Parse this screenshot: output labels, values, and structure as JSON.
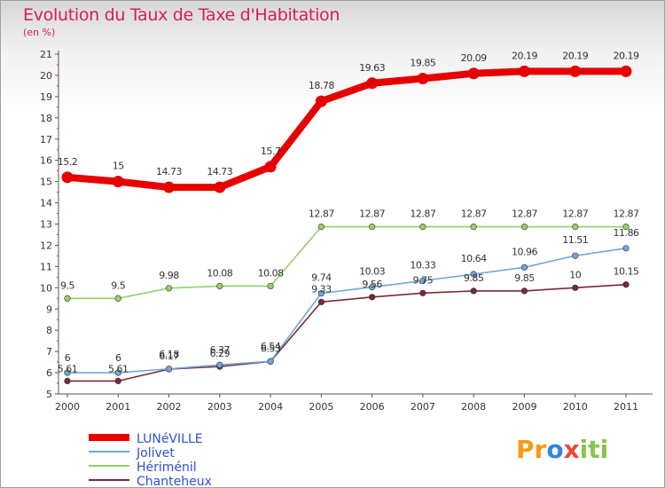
{
  "title": "Evolution du Taux de Taxe d'Habitation",
  "subtitle": "(en %)",
  "brand": [
    "Pr",
    "o",
    "x",
    "iti"
  ],
  "chart_data": {
    "type": "line",
    "title": "Evolution du Taux de Taxe d'Habitation",
    "xlabel": "",
    "ylabel": "(en %)",
    "x": [
      2000,
      2001,
      2002,
      2003,
      2004,
      2005,
      2006,
      2007,
      2008,
      2009,
      2010,
      2011
    ],
    "ylim": [
      5,
      21
    ],
    "yticks": [
      5,
      6,
      7,
      8,
      9,
      10,
      11,
      12,
      13,
      14,
      15,
      16,
      17,
      18,
      19,
      20,
      21
    ],
    "grid": false,
    "legend": "bottom-left",
    "series": [
      {
        "name": "LUNéVILLE",
        "color": "#e60000",
        "values": [
          15.2,
          15,
          14.73,
          14.73,
          15.7,
          18.78,
          19.63,
          19.85,
          20.09,
          20.19,
          20.19,
          20.19
        ],
        "labels": [
          "15.2",
          "15",
          "14.73",
          "14.73",
          "15.7",
          "18.78",
          "19.63",
          "19.85",
          "20.09",
          "20.19",
          "20.19",
          "20.19"
        ]
      },
      {
        "name": "Jolivet",
        "color": "#6fa8dc",
        "values": [
          6,
          6,
          6.18,
          6.37,
          6.54,
          9.74,
          10.03,
          10.33,
          10.64,
          10.96,
          11.51,
          11.86
        ],
        "labels": [
          "6",
          "6",
          "6.18",
          "6.37",
          "6.54",
          "9.74",
          "10.03",
          "10.33",
          "10.64",
          "10.96",
          "11.51",
          "11.86"
        ]
      },
      {
        "name": "Hériménil",
        "color": "#93d16a",
        "values": [
          9.5,
          9.5,
          9.98,
          10.08,
          10.08,
          12.87,
          12.87,
          12.87,
          12.87,
          12.87,
          12.87,
          12.87
        ],
        "labels": [
          "9.5",
          "9.5",
          "9.98",
          "10.08",
          "10.08",
          "12.87",
          "12.87",
          "12.87",
          "12.87",
          "12.87",
          "12.87",
          "12.87"
        ]
      },
      {
        "name": "Chanteheux",
        "color": "#7a2a35",
        "values": [
          5.61,
          5.61,
          6.17,
          6.29,
          6.53,
          9.33,
          9.56,
          9.75,
          9.85,
          9.85,
          10,
          10.15
        ],
        "labels": [
          "5.61",
          "5.61",
          "6.17",
          "6.29",
          "6.53",
          "9.33",
          "9.56",
          "9.75",
          "9.85",
          "9.85",
          "10",
          "10.15"
        ]
      }
    ]
  }
}
